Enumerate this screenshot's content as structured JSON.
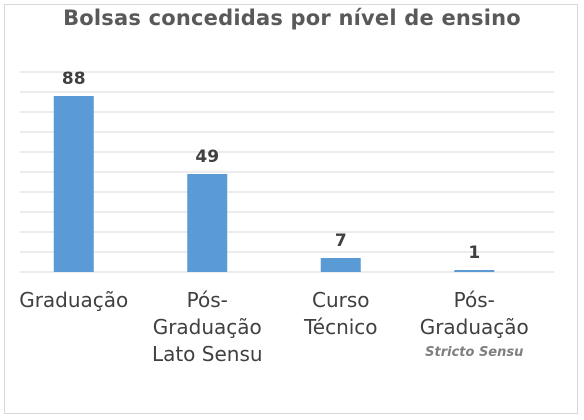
{
  "chart_data": {
    "type": "bar",
    "title": "Bolsas concedidas por nível de ensino",
    "categories": [
      [
        "Graduação"
      ],
      [
        "Pós-",
        "Graduação",
        "Lato Sensu"
      ],
      [
        "Curso",
        "Técnico"
      ],
      [
        "Pós-",
        "Graduação"
      ]
    ],
    "category_sublabels": [
      "",
      "",
      "",
      "Stricto Sensu"
    ],
    "values": [
      88,
      49,
      7,
      1
    ],
    "data_labels": [
      "88",
      "49",
      "7",
      "1"
    ],
    "ylim": [
      0,
      100
    ],
    "grid": true,
    "legend": "none",
    "colors": {
      "bar": "#5b9bd5",
      "grid": "#d9d9d9",
      "axis": "#d9d9d9",
      "label": "#404040",
      "title": "#595959"
    }
  }
}
